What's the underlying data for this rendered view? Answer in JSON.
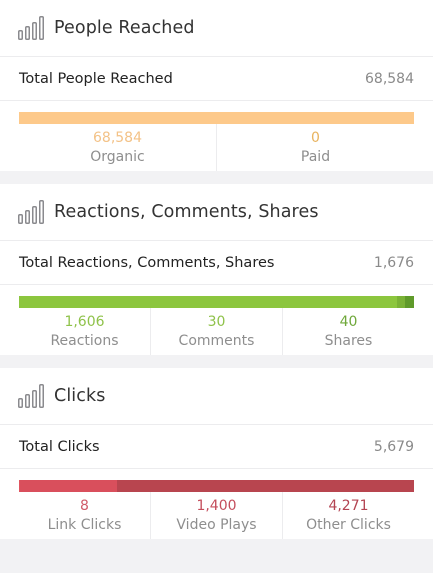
{
  "people": {
    "title": "People Reached",
    "total_label": "Total People Reached",
    "total_value": "68,584",
    "bar": [
      {
        "fraction": 1.0,
        "color": "#fdc98a"
      },
      {
        "fraction": 0.0,
        "color": "#f0a94b"
      }
    ],
    "stats": [
      {
        "value": "68,584",
        "label": "Organic",
        "color": "#f3c287"
      },
      {
        "value": "0",
        "label": "Paid",
        "color": "#e8b35e"
      }
    ]
  },
  "reactions": {
    "title": "Reactions, Comments, Shares",
    "total_label": "Total Reactions, Comments, Shares",
    "total_value": "1,676",
    "bar": [
      {
        "fraction": 0.9582,
        "color": "#8cc63e"
      },
      {
        "fraction": 0.0179,
        "color": "#7ab236"
      },
      {
        "fraction": 0.0239,
        "color": "#5f9a2a"
      }
    ],
    "stats": [
      {
        "value": "1,606",
        "label": "Reactions",
        "color": "#8fc24a"
      },
      {
        "value": "30",
        "label": "Comments",
        "color": "#8fc24a"
      },
      {
        "value": "40",
        "label": "Shares",
        "color": "#6fa83a"
      }
    ]
  },
  "clicks": {
    "title": "Clicks",
    "total_label": "Total Clicks",
    "total_value": "5,679",
    "bar": [
      {
        "fraction": 0.0014,
        "color": "#e05560"
      },
      {
        "fraction": 0.2465,
        "color": "#d94f5c"
      },
      {
        "fraction": 0.7521,
        "color": "#b8454f"
      }
    ],
    "stats": [
      {
        "value": "8",
        "label": "Link Clicks",
        "color": "#d05a68"
      },
      {
        "value": "1,400",
        "label": "Video Plays",
        "color": "#c44e5c"
      },
      {
        "value": "4,271",
        "label": "Other Clicks",
        "color": "#b34452"
      }
    ]
  },
  "icons": {
    "section_icon": "bar-chart-icon",
    "icon_color": "#8a8a8e"
  }
}
